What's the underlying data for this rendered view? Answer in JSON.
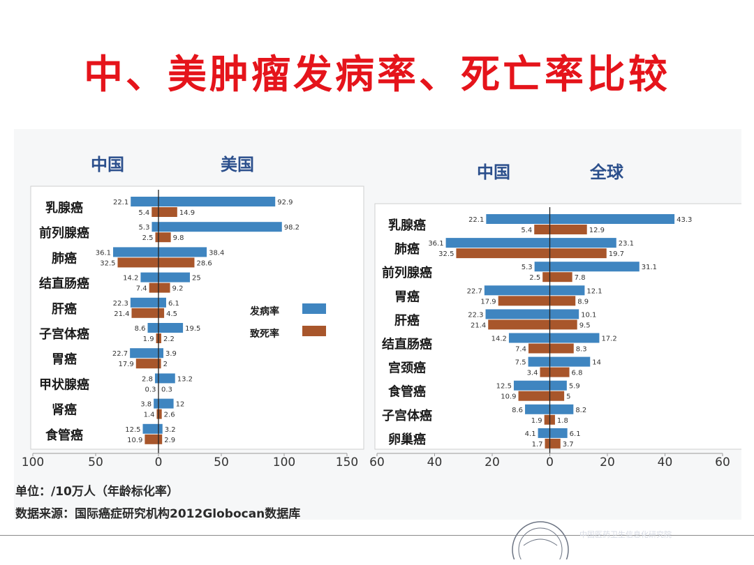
{
  "title": "中、美肿瘤发病率、死亡率比较",
  "colors": {
    "incidence": "#3f85c0",
    "mortality": "#a8562b",
    "axis": "#222222",
    "text": "#1a1a1a",
    "header": "#2b4f8c"
  },
  "legend": {
    "incidence": "发病率",
    "mortality": "致死率"
  },
  "footnote": {
    "unit": "单位：/10万人（年龄标化率）",
    "source": "数据来源：国际癌症研究机构2012Globocan数据库"
  },
  "watermark": "中国医药卫生信息化研究院",
  "chart_data": [
    {
      "type": "bar",
      "orientation": "horizontal-diverging",
      "left_group": "中国",
      "right_group": "美国",
      "categories": [
        "乳腺癌",
        "前列腺癌",
        "肺癌",
        "结直肠癌",
        "肝癌",
        "子宫体癌",
        "胃癌",
        "甲状腺癌",
        "肾癌",
        "食管癌"
      ],
      "series": [
        {
          "name": "发病率",
          "left": [
            22.1,
            5.3,
            36.1,
            14.2,
            22.3,
            8.6,
            22.7,
            2.8,
            3.8,
            12.5
          ],
          "right": [
            92.9,
            98.2,
            38.4,
            25,
            6.1,
            19.5,
            3.9,
            13.2,
            12,
            3.2
          ]
        },
        {
          "name": "致死率",
          "left": [
            5.4,
            2.5,
            32.5,
            7.4,
            21.4,
            1.9,
            17.9,
            0.3,
            1.4,
            10.9
          ],
          "right": [
            14.9,
            9.8,
            28.6,
            9.2,
            4.5,
            2.2,
            2,
            0.3,
            2.6,
            2.9
          ]
        }
      ],
      "labels": [
        [
          "22.1",
          "92.9",
          "5.4",
          "14.9"
        ],
        [
          "5.3",
          "98.2",
          "2.5",
          "9.8"
        ],
        [
          "36.1",
          "38.4",
          "32.5",
          "28.6"
        ],
        [
          "14.2",
          "25",
          "7.4",
          "9.2"
        ],
        [
          "22.3",
          "6.1",
          "21.4",
          "4.5"
        ],
        [
          "8.6",
          "19.5",
          "1.9",
          "2.2"
        ],
        [
          "22.7",
          "3.9",
          "17.9",
          "2"
        ],
        [
          "2.8",
          "13.2",
          "0.3",
          "0.3"
        ],
        [
          "3.8",
          "12",
          "1.4",
          "2.6"
        ],
        [
          "12.5",
          "3.2",
          "10.9",
          "2.9"
        ]
      ],
      "xlim": [
        -100,
        150
      ],
      "ticks": [
        "100",
        "50",
        "0",
        "50",
        "100",
        "150"
      ],
      "tick_values": [
        -100,
        -50,
        0,
        50,
        100,
        150
      ],
      "grid": false
    },
    {
      "type": "bar",
      "orientation": "horizontal-diverging",
      "left_group": "中国",
      "right_group": "全球",
      "categories": [
        "乳腺癌",
        "肺癌",
        "前列腺癌",
        "胃癌",
        "肝癌",
        "结直肠癌",
        "宫颈癌",
        "食管癌",
        "子宫体癌",
        "卵巢癌"
      ],
      "series": [
        {
          "name": "发病率",
          "left": [
            22.1,
            36.1,
            5.3,
            22.7,
            22.3,
            14.2,
            7.5,
            12.5,
            8.6,
            4.1
          ],
          "right": [
            43.3,
            23.1,
            31.1,
            12.1,
            10.1,
            17.2,
            14,
            5.9,
            8.2,
            6.1
          ]
        },
        {
          "name": "致死率",
          "left": [
            5.4,
            32.5,
            2.5,
            17.9,
            21.4,
            7.4,
            3.4,
            10.9,
            1.9,
            1.7
          ],
          "right": [
            12.9,
            19.7,
            7.8,
            8.9,
            9.5,
            8.3,
            6.8,
            5,
            1.8,
            3.7
          ]
        }
      ],
      "labels": [
        [
          "22.1",
          "43.3",
          "5.4",
          "12.9"
        ],
        [
          "36.1",
          "23.1",
          "32.5",
          "19.7"
        ],
        [
          "5.3",
          "31.1",
          "2.5",
          "7.8"
        ],
        [
          "22.7",
          "12.1",
          "17.9",
          "8.9"
        ],
        [
          "22.3",
          "10.1",
          "21.4",
          "9.5"
        ],
        [
          "14.2",
          "17.2",
          "7.4",
          "8.3"
        ],
        [
          "7.5",
          "14",
          "3.4",
          "6.8"
        ],
        [
          "12.5",
          "5.9",
          "10.9",
          "5"
        ],
        [
          "8.6",
          "8.2",
          "1.9",
          "1.8"
        ],
        [
          "4.1",
          "6.1",
          "1.7",
          "3.7"
        ]
      ],
      "xlim": [
        -60,
        60
      ],
      "ticks": [
        "60",
        "40",
        "20",
        "0",
        "20",
        "40",
        "60"
      ],
      "tick_values": [
        -60,
        -40,
        -20,
        0,
        20,
        40,
        60
      ],
      "grid": false
    }
  ]
}
